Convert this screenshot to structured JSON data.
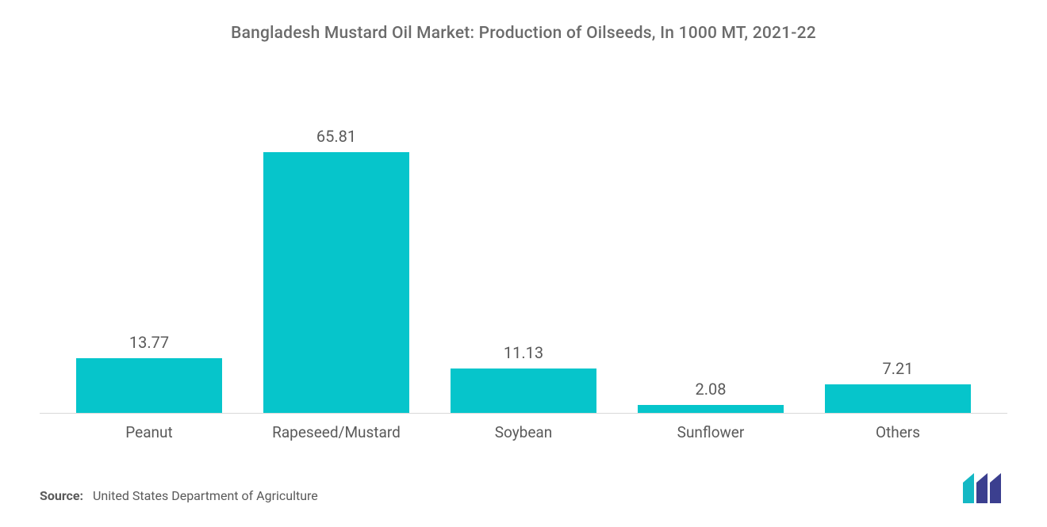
{
  "chart": {
    "type": "bar",
    "title": "Bangladesh Mustard Oil Market: Production of Oilseeds, In 1000 MT, 2021-22",
    "title_fontsize": 21,
    "title_color": "#6b6b6b",
    "categories": [
      "Peanut",
      "Rapeseed/Mustard",
      "Soybean",
      "Sunflower",
      "Others"
    ],
    "values": [
      13.77,
      65.81,
      11.13,
      2.08,
      7.21
    ],
    "value_labels": [
      "13.77",
      "65.81",
      "11.13",
      "2.08",
      "7.21"
    ],
    "bar_color": "#06c5cb",
    "ylim_max": 68,
    "background_color": "#ffffff",
    "axis_line_color": "#d9d9d9",
    "label_color": "#5a5a5a",
    "label_fontsize": 19,
    "value_label_fontsize": 20,
    "bar_width_pct": 78
  },
  "footer": {
    "source_label": "Source:",
    "source_text": "United States Department of Agriculture"
  },
  "logo": {
    "bar1_color": "#14b8c4",
    "bar2_color": "#3b3f8f"
  }
}
